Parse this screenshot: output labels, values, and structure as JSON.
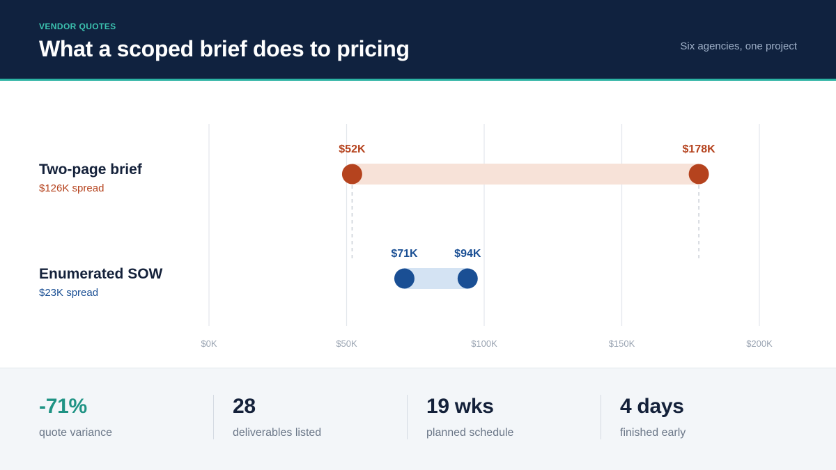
{
  "header": {
    "eyebrow": "VENDOR QUOTES",
    "title": "What a scoped brief does to pricing",
    "subtitle": "Six agencies, one project"
  },
  "colors": {
    "accent_teal": "#2bb3a3",
    "series_orange": "#b5431e",
    "series_orange_band": "#f7e2d8",
    "series_blue": "#1a4f94",
    "series_blue_band": "#d4e3f3",
    "header_bg": "#10223f"
  },
  "chart_data": {
    "type": "range",
    "title": "What a scoped brief does to pricing",
    "xlim": [
      0,
      200
    ],
    "x_unit": "$K",
    "x_ticks": [
      0,
      50,
      100,
      150,
      200
    ],
    "x_tick_labels": [
      "$0K",
      "$50K",
      "$100K",
      "$150K",
      "$200K"
    ],
    "grid": true,
    "series": [
      {
        "name": "Two-page brief",
        "spread_label": "$126K spread",
        "min": 52,
        "max": 178,
        "min_label": "$52K",
        "max_label": "$178K",
        "color": "#b5431e"
      },
      {
        "name": "Enumerated SOW",
        "spread_label": "$23K spread",
        "min": 71,
        "max": 94,
        "min_label": "$71K",
        "max_label": "$94K",
        "color": "#1a4f94"
      }
    ]
  },
  "stats": [
    {
      "value": "-71%",
      "label": "quote variance",
      "color": "#1f9384"
    },
    {
      "value": "28",
      "label": "deliverables listed",
      "color": "#14213a"
    },
    {
      "value": "19 wks",
      "label": "planned schedule",
      "color": "#14213a"
    },
    {
      "value": "4 days",
      "label": "finished early",
      "color": "#14213a"
    }
  ]
}
